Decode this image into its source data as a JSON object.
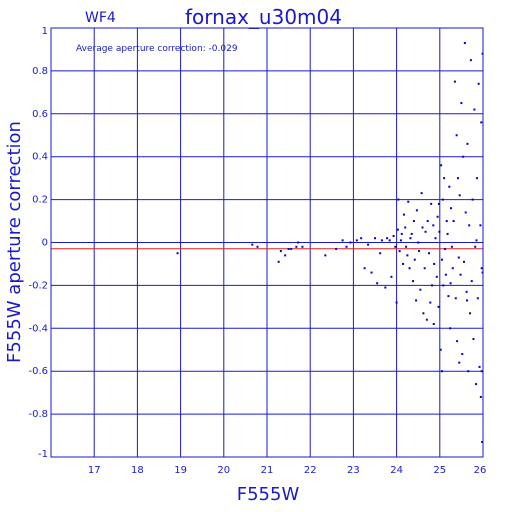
{
  "header": {
    "chip_label": "WF4",
    "title": "fornax_u30m04"
  },
  "annotation": "Average aperture correction: -0.029",
  "colors": {
    "axis": "#1a1acc",
    "points": "#0000c8",
    "mean_line": "#e02020",
    "background": "#ffffff"
  },
  "chart_data": {
    "type": "scatter",
    "title": "fornax_u30m04",
    "xlabel": "F555W",
    "ylabel": "F555W aperture correction",
    "xlim": [
      16,
      26
    ],
    "ylim": [
      -1,
      1
    ],
    "grid": true,
    "x_ticks": [
      "17",
      "18",
      "19",
      "20",
      "21",
      "22",
      "23",
      "24",
      "25",
      "26"
    ],
    "y_ticks": [
      "-1",
      "-0.8",
      "-0.6",
      "-0.4",
      "-0.2",
      "0",
      "0.2",
      "0.4",
      "0.6",
      "0.8",
      "1"
    ],
    "mean_correction": -0.029,
    "points": [
      [
        18.93,
        -0.05
      ],
      [
        20.66,
        -0.01
      ],
      [
        20.78,
        -0.02
      ],
      [
        21.27,
        -0.09
      ],
      [
        21.32,
        -0.04
      ],
      [
        21.42,
        -0.06
      ],
      [
        21.5,
        -0.03
      ],
      [
        21.56,
        -0.03
      ],
      [
        21.68,
        -0.02
      ],
      [
        21.72,
        0.0
      ],
      [
        21.82,
        -0.02
      ],
      [
        22.35,
        -0.06
      ],
      [
        22.6,
        -0.03
      ],
      [
        22.75,
        0.01
      ],
      [
        22.84,
        -0.02
      ],
      [
        22.93,
        0.0
      ],
      [
        23.08,
        0.01
      ],
      [
        23.18,
        0.02
      ],
      [
        23.26,
        -0.12
      ],
      [
        23.34,
        -0.01
      ],
      [
        23.42,
        -0.14
      ],
      [
        23.5,
        0.02
      ],
      [
        23.55,
        -0.19
      ],
      [
        23.62,
        -0.05
      ],
      [
        23.66,
        0.01
      ],
      [
        23.74,
        -0.21
      ],
      [
        23.78,
        0.02
      ],
      [
        23.84,
        0.01
      ],
      [
        23.88,
        -0.16
      ],
      [
        23.93,
        0.03
      ],
      [
        23.97,
        -0.02
      ],
      [
        24.0,
        -0.28
      ],
      [
        24.03,
        0.06
      ],
      [
        24.04,
        0.2
      ],
      [
        24.07,
        -0.04
      ],
      [
        24.1,
        0.01
      ],
      [
        24.12,
        0.04
      ],
      [
        24.15,
        -0.1
      ],
      [
        24.17,
        0.13
      ],
      [
        24.2,
        0.07
      ],
      [
        24.22,
        -0.02
      ],
      [
        24.25,
        -0.06
      ],
      [
        24.27,
        0.19
      ],
      [
        24.3,
        -0.12
      ],
      [
        24.32,
        0.02
      ],
      [
        24.35,
        0.04
      ],
      [
        24.38,
        -0.18
      ],
      [
        24.4,
        0.1
      ],
      [
        24.42,
        -0.08
      ],
      [
        24.45,
        -0.27
      ],
      [
        24.47,
        0.15
      ],
      [
        24.5,
        0.0
      ],
      [
        24.52,
        -0.04
      ],
      [
        24.55,
        -0.22
      ],
      [
        24.58,
        0.23
      ],
      [
        24.6,
        0.07
      ],
      [
        24.62,
        -0.33
      ],
      [
        24.65,
        -0.12
      ],
      [
        24.67,
        0.05
      ],
      [
        24.7,
        -0.36
      ],
      [
        24.72,
        0.1
      ],
      [
        24.75,
        -0.05
      ],
      [
        24.78,
        -0.28
      ],
      [
        24.8,
        0.18
      ],
      [
        24.82,
        -0.2
      ],
      [
        24.85,
        0.08
      ],
      [
        24.87,
        -0.1
      ],
      [
        24.9,
        0.02
      ],
      [
        24.93,
        -0.16
      ],
      [
        24.95,
        0.12
      ],
      [
        24.97,
        -0.3
      ],
      [
        24.99,
        0.05
      ],
      [
        25.02,
        -0.5
      ],
      [
        25.03,
        0.36
      ],
      [
        25.05,
        -0.08
      ],
      [
        25.07,
        0.2
      ],
      [
        25.08,
        -0.2
      ],
      [
        25.1,
        0.3
      ],
      [
        25.12,
        -0.03
      ],
      [
        25.14,
        -0.15
      ],
      [
        25.16,
        0.1
      ],
      [
        25.18,
        0.04
      ],
      [
        25.2,
        -0.25
      ],
      [
        25.22,
        0.26
      ],
      [
        25.24,
        -0.4
      ],
      [
        25.26,
        0.16
      ],
      [
        25.28,
        -0.02
      ],
      [
        25.3,
        -0.12
      ],
      [
        25.32,
        0.1
      ],
      [
        25.35,
        0.75
      ],
      [
        25.37,
        -0.26
      ],
      [
        25.39,
        0.5
      ],
      [
        25.4,
        -0.46
      ],
      [
        25.42,
        0.3
      ],
      [
        25.44,
        -0.07
      ],
      [
        25.46,
        0.22
      ],
      [
        25.48,
        -0.15
      ],
      [
        25.5,
        0.65
      ],
      [
        25.52,
        -0.52
      ],
      [
        25.54,
        0.4
      ],
      [
        25.56,
        -0.09
      ],
      [
        25.58,
        0.93
      ],
      [
        25.6,
        0.14
      ],
      [
        25.62,
        -0.23
      ],
      [
        25.64,
        0.46
      ],
      [
        25.66,
        -0.6
      ],
      [
        25.68,
        0.08
      ],
      [
        25.7,
        -0.33
      ],
      [
        25.72,
        0.85
      ],
      [
        25.74,
        -0.18
      ],
      [
        25.76,
        0.2
      ],
      [
        25.78,
        -0.45
      ],
      [
        25.8,
        0.62
      ],
      [
        25.82,
        -0.02
      ],
      [
        25.84,
        -0.66
      ],
      [
        25.86,
        0.3
      ],
      [
        25.88,
        -0.26
      ],
      [
        25.9,
        0.74
      ],
      [
        25.92,
        -0.58
      ],
      [
        25.94,
        0.08
      ],
      [
        25.95,
        -0.72
      ],
      [
        25.96,
        0.56
      ],
      [
        25.97,
        -0.12
      ],
      [
        25.98,
        -0.93
      ],
      [
        25.99,
        0.88
      ],
      [
        25.99,
        -0.14
      ],
      [
        25.97,
        -0.6
      ],
      [
        25.85,
        0.01
      ],
      [
        25.63,
        -0.27
      ],
      [
        25.45,
        -0.56
      ],
      [
        25.25,
        -0.19
      ],
      [
        25.05,
        -0.6
      ],
      [
        24.98,
        0.18
      ],
      [
        24.86,
        -0.38
      ]
    ]
  }
}
